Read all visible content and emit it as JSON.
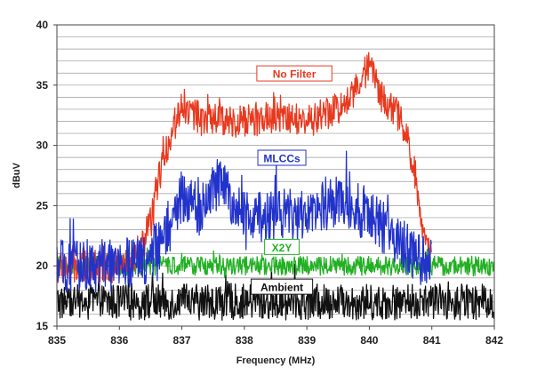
{
  "chart_data": {
    "type": "line",
    "title": "",
    "xlabel": "Frequency (MHz)",
    "ylabel": "dBuV",
    "xlim": [
      835,
      842
    ],
    "ylim": [
      15,
      40
    ],
    "x_ticks": [
      835,
      836,
      837,
      838,
      839,
      840,
      841,
      842
    ],
    "y_ticks": [
      15,
      20,
      25,
      30,
      35,
      40
    ],
    "grid": "horizontal",
    "legend": "inline labels",
    "series": [
      {
        "name": "No Filter",
        "color": "#e8391e",
        "x": [
          835.0,
          836.0,
          836.3,
          836.5,
          836.7,
          836.9,
          837.0,
          837.2,
          837.5,
          838.0,
          838.5,
          839.0,
          839.3,
          839.6,
          839.9,
          840.0,
          840.2,
          840.4,
          840.6,
          840.75,
          840.9,
          841.0
        ],
        "y": [
          19.8,
          20.0,
          20.5,
          23.5,
          29.0,
          32.0,
          33.5,
          32.5,
          32.2,
          32.0,
          32.3,
          32.0,
          32.5,
          33.5,
          35.5,
          37.0,
          34.0,
          33.0,
          31.0,
          27.0,
          22.0,
          20.5
        ]
      },
      {
        "name": "MLCCs",
        "color": "#2233cc",
        "x": [
          835.0,
          836.0,
          836.4,
          836.6,
          836.8,
          837.0,
          837.3,
          837.6,
          838.0,
          838.3,
          838.6,
          839.0,
          839.3,
          839.6,
          840.0,
          840.3,
          840.5,
          840.7,
          841.0
        ],
        "y": [
          20.0,
          20.0,
          20.5,
          21.5,
          23.0,
          26.0,
          24.5,
          27.0,
          24.0,
          24.0,
          24.5,
          24.0,
          25.0,
          25.5,
          24.0,
          23.0,
          22.0,
          20.8,
          20.0
        ]
      },
      {
        "name": "X2Y",
        "color": "#22b022",
        "x": [
          835.0,
          836.0,
          837.0,
          838.0,
          839.0,
          840.0,
          841.0,
          842.0
        ],
        "y": [
          20.0,
          20.0,
          20.0,
          20.0,
          20.0,
          20.0,
          20.0,
          20.0
        ]
      },
      {
        "name": "Ambient",
        "color": "#111111",
        "x": [
          835.0,
          836.0,
          837.0,
          838.0,
          839.0,
          840.0,
          841.0,
          842.0
        ],
        "y": [
          17.0,
          17.0,
          17.0,
          17.0,
          17.0,
          17.0,
          17.0,
          17.0
        ]
      }
    ],
    "annotations": [
      {
        "text": "No Filter",
        "x": 838.8,
        "y": 35.9,
        "color": "#e8391e",
        "border": "#e8391e"
      },
      {
        "text": "MLCCs",
        "x": 838.6,
        "y": 28.9,
        "color": "#2233cc",
        "border": "#2233cc"
      },
      {
        "text": "X2Y",
        "x": 838.6,
        "y": 21.5,
        "color": "#22b022",
        "border": "#22b022"
      },
      {
        "text": "Ambient",
        "x": 838.6,
        "y": 18.2,
        "color": "#111111",
        "border": "#111111"
      }
    ]
  }
}
